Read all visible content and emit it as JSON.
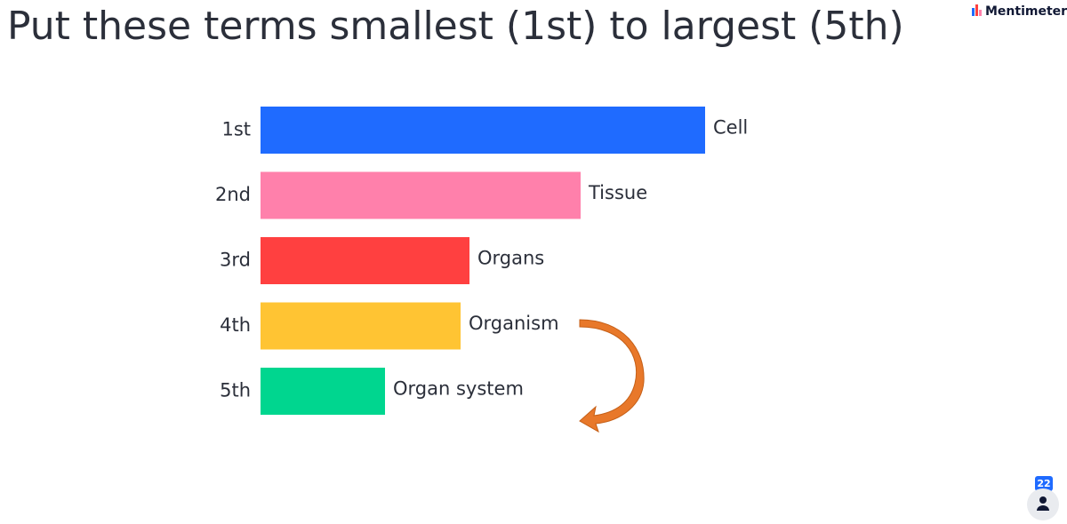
{
  "chart_data": {
    "type": "bar",
    "orientation": "horizontal",
    "title": "Put these terms smallest (1st) to largest (5th)",
    "categories": [
      "1st",
      "2nd",
      "3rd",
      "4th",
      "5th"
    ],
    "bar_labels": [
      "Cell",
      "Tissue",
      "Organs",
      "Organism",
      "Organ system"
    ],
    "values": [
      100,
      72,
      47,
      45,
      28
    ],
    "colors": [
      "#1f6bff",
      "#ff80ab",
      "#ff4040",
      "#ffc433",
      "#00d68f"
    ]
  },
  "ui": {
    "brand": "Mentimeter",
    "participants": 22
  }
}
